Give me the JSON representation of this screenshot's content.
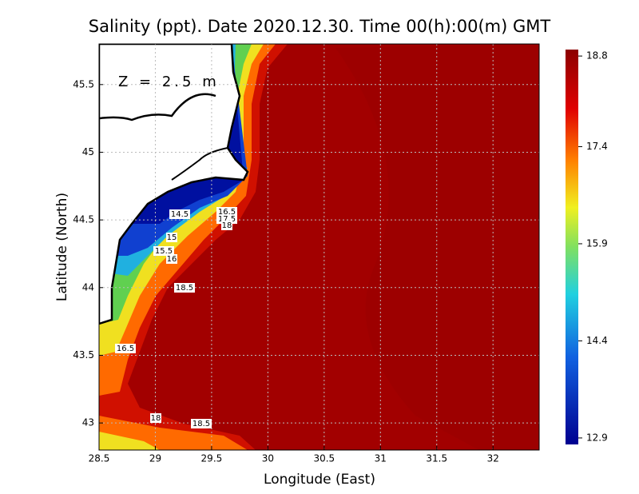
{
  "chart_data": {
    "type": "contour",
    "title": "Salinity (ppt). Date 2020.12.30. Time 00(h):00(m) GMT",
    "annotation": "Z = 2.5 m",
    "x_label": "Longitude (East)",
    "y_label": "Latitude (North)",
    "xlim": [
      28.5,
      32.41
    ],
    "ylim": [
      42.8,
      45.8
    ],
    "xticks": [
      28.5,
      29,
      29.5,
      30,
      30.5,
      31,
      31.5,
      32
    ],
    "yticks": [
      43,
      43.5,
      44,
      44.5,
      45,
      45.5
    ],
    "grid": true,
    "colorbar": {
      "lim": [
        12.8,
        18.9
      ],
      "ticks": [
        18.8,
        17.4,
        15.9,
        14.4,
        12.9
      ]
    },
    "contour_labels": [
      14.5,
      16.5,
      17.5,
      18,
      15,
      15.5,
      16,
      18.5,
      16.5,
      18,
      18.5
    ]
  }
}
